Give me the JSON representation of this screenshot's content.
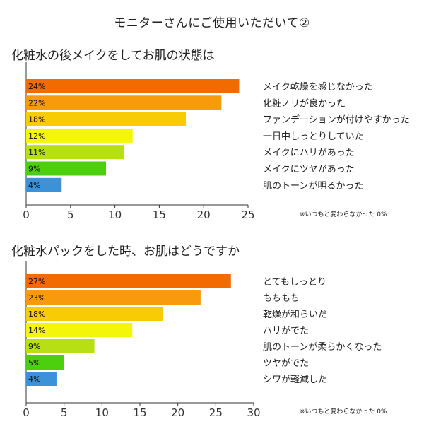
{
  "page_title": "モニターさんにご使用いただいて②",
  "chart_data": [
    {
      "type": "bar",
      "orientation": "horizontal",
      "title": "化粧水の後メイクをしてお肌の状態は",
      "categories": [
        "メイク乾燥を感じなかった",
        "化粧ノリが良かった",
        "ファンデーションが付けやすかった",
        "一日中しっとりしていた",
        "メイクにハリがあった",
        "メイクにツヤがあった",
        "肌のトーンが明るかった"
      ],
      "values": [
        24,
        22,
        18,
        12,
        11,
        9,
        4
      ],
      "value_labels": [
        "24%",
        "22%",
        "18%",
        "12%",
        "11%",
        "9%",
        "4%"
      ],
      "bar_colors": [
        "#f26b00",
        "#f79a0c",
        "#f7cc05",
        "#f4f60a",
        "#b7e014",
        "#4cd00e",
        "#3c92d8"
      ],
      "xlim": [
        0,
        25
      ],
      "xticks": [
        0,
        5,
        10,
        15,
        20,
        25
      ],
      "xlabel": "",
      "ylabel": "",
      "grid": false,
      "note": "※いつもと変わらなかった 0%"
    },
    {
      "type": "bar",
      "orientation": "horizontal",
      "title": "化粧水パックをした時、お肌はどうですか",
      "categories": [
        "とてもしっとり",
        "もちもち",
        "乾燥が和らいだ",
        "ハリがでた",
        "肌のトーンが柔らかくなった",
        "ツヤがでた",
        "シワが軽減した"
      ],
      "values": [
        27,
        23,
        18,
        14,
        9,
        5,
        4
      ],
      "value_labels": [
        "27%",
        "23%",
        "18%",
        "14%",
        "9%",
        "5%",
        "4%"
      ],
      "bar_colors": [
        "#f26b00",
        "#f79a0c",
        "#f7cc05",
        "#f4f60a",
        "#b7e014",
        "#4cd00e",
        "#3c92d8"
      ],
      "xlim": [
        0,
        30
      ],
      "xticks": [
        0,
        5,
        10,
        15,
        20,
        25,
        30
      ],
      "xlabel": "",
      "ylabel": "",
      "grid": false,
      "note": "※いつもと変わらなかった 0%"
    }
  ]
}
